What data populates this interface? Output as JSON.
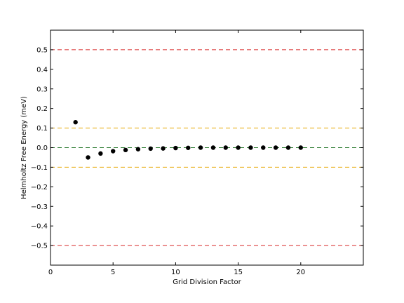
{
  "chart_data": {
    "type": "scatter",
    "title": "",
    "xlabel": "Grid Division Factor",
    "ylabel": "Helmholtz Free Energy (meV)",
    "xlim": [
      0,
      25
    ],
    "ylim": [
      -0.6,
      0.6
    ],
    "xticks": [
      0,
      5,
      10,
      15,
      20
    ],
    "xtick_labels": [
      "0",
      "5",
      "10",
      "15",
      "20"
    ],
    "yticks": [
      0.5,
      0.4,
      0.3,
      0.2,
      0.1,
      0.0,
      -0.1,
      -0.2,
      -0.3,
      -0.4,
      -0.5
    ],
    "ytick_labels": [
      "0.5",
      "0.4",
      "0.3",
      "0.2",
      "0.1",
      "0.0",
      "−0.1",
      "−0.2",
      "−0.3",
      "−0.4",
      "−0.5"
    ],
    "grid": false,
    "points": {
      "color": "#000000",
      "x": [
        2,
        3,
        4,
        5,
        6,
        7,
        8,
        9,
        10,
        11,
        12,
        13,
        14,
        15,
        16,
        17,
        18,
        19,
        20
      ],
      "y": [
        0.13,
        -0.05,
        -0.03,
        -0.018,
        -0.012,
        -0.008,
        -0.005,
        -0.004,
        -0.002,
        -0.001,
        0.0,
        0.0,
        0.0,
        0.0,
        0.0,
        0.0,
        0.0,
        0.0,
        0.0
      ]
    },
    "reference_lines": [
      {
        "y": 0.5,
        "color": "#d62728",
        "style": "dashed"
      },
      {
        "y": 0.1,
        "color": "#e6a800",
        "style": "dashed"
      },
      {
        "y": 0.0,
        "color": "#2e7d32",
        "style": "dashed"
      },
      {
        "y": -0.1,
        "color": "#e6a800",
        "style": "dashed"
      },
      {
        "y": -0.5,
        "color": "#d62728",
        "style": "dashed"
      }
    ]
  }
}
